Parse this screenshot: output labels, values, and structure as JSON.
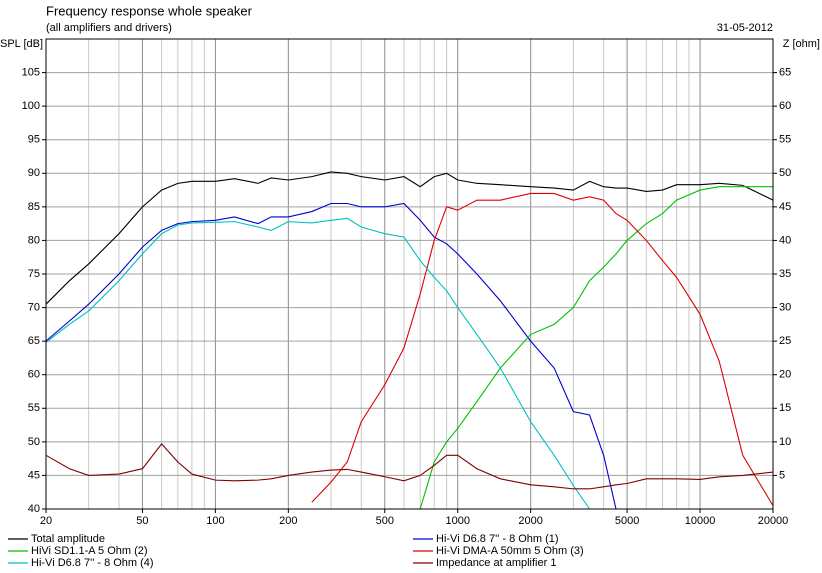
{
  "chart_data": {
    "type": "line",
    "title": "Frequency response whole speaker",
    "subtitle": "(all amplifiers and drivers)",
    "date": "31-05-2012",
    "y_label": "SPL [dB]",
    "y2_label": "Z [ohm]",
    "log_x": true,
    "grid": true,
    "legend": "bottom",
    "xlim": [
      20,
      20000
    ],
    "xticks": [
      20,
      50,
      100,
      200,
      500,
      1000,
      2000,
      5000,
      10000,
      20000
    ],
    "xgrid": [
      20,
      30,
      40,
      50,
      60,
      70,
      80,
      90,
      100,
      200,
      300,
      400,
      500,
      600,
      700,
      800,
      900,
      1000,
      2000,
      3000,
      4000,
      5000,
      6000,
      7000,
      8000,
      9000,
      10000,
      20000
    ],
    "ylim": [
      40,
      110
    ],
    "yticks": [
      40,
      45,
      50,
      55,
      60,
      65,
      70,
      75,
      80,
      85,
      90,
      95,
      100,
      105
    ],
    "ygrid": [
      40,
      45,
      50,
      55,
      60,
      65,
      70,
      75,
      80,
      85,
      90,
      95,
      100,
      105,
      110
    ],
    "y2lim": [
      0,
      70
    ],
    "y2ticks": [
      5,
      10,
      15,
      20,
      25,
      30,
      35,
      40,
      45,
      50,
      55,
      60,
      65
    ],
    "x": [
      20,
      25,
      30,
      40,
      50,
      60,
      70,
      80,
      100,
      120,
      150,
      170,
      200,
      250,
      300,
      350,
      400,
      500,
      600,
      700,
      800,
      900,
      1000,
      1200,
      1500,
      2000,
      2500,
      3000,
      3500,
      4000,
      4500,
      5000,
      6000,
      7000,
      8000,
      10000,
      12000,
      15000,
      20000
    ],
    "series": [
      {
        "name": "Total amplitude",
        "color": "#000000",
        "values": [
          70.5,
          74,
          76.5,
          81,
          85,
          87.5,
          88.5,
          88.8,
          88.8,
          89.2,
          88.5,
          89.3,
          89,
          89.5,
          90.2,
          90,
          89.5,
          89,
          89.5,
          88,
          89.5,
          90,
          89,
          88.5,
          88.3,
          88,
          87.8,
          87.5,
          88.8,
          88,
          87.8,
          87.8,
          87.3,
          87.5,
          88.3,
          88.3,
          88.5,
          88.2,
          86
        ]
      },
      {
        "name": "Hi-Vi D6.8 7'' - 8 Ohm (1)",
        "color": "#0000d0",
        "values": [
          65,
          68,
          70.5,
          75,
          79,
          81.5,
          82.5,
          82.8,
          83,
          83.5,
          82.5,
          83.5,
          83.5,
          84.3,
          85.5,
          85.5,
          85,
          85,
          85.5,
          83,
          80.5,
          79.5,
          78,
          75,
          71,
          65,
          61,
          54.5,
          54,
          48,
          40,
          null,
          null,
          null,
          null,
          null,
          null,
          null,
          null
        ]
      },
      {
        "name": "HiVi SD1.1-A 5 Ohm (2)",
        "color": "#00c000",
        "values": [
          40,
          40,
          40,
          40,
          40,
          40,
          40,
          40,
          40,
          40,
          40,
          40,
          40,
          40,
          40,
          40,
          40,
          40,
          40,
          40,
          47,
          50,
          52,
          56,
          61,
          66,
          67.5,
          70,
          74,
          76,
          78,
          80,
          82.5,
          84,
          86,
          87.5,
          88,
          88,
          88
        ]
      },
      {
        "name": "Hi-Vi DMA-A 50mm 5 Ohm (3)",
        "color": "#e00000",
        "values": [
          null,
          null,
          null,
          null,
          null,
          null,
          null,
          null,
          null,
          null,
          null,
          null,
          null,
          41,
          44,
          47,
          53,
          58.5,
          64,
          72,
          80,
          85,
          84.5,
          86,
          86,
          87,
          87,
          86,
          86.5,
          86,
          84,
          83,
          80,
          77,
          74.5,
          69,
          62,
          48,
          40.5
        ]
      },
      {
        "name": "Hi-Vi D6.8 7'' - 8 Ohm (4)",
        "color": "#00c0c0",
        "values": [
          64.8,
          67.5,
          69.5,
          74,
          78,
          81,
          82.3,
          82.6,
          82.7,
          82.8,
          82,
          81.5,
          82.8,
          82.6,
          83,
          83.3,
          82,
          81,
          80.5,
          77,
          74.5,
          72.5,
          70,
          66,
          61,
          53,
          48,
          43.5,
          40,
          null,
          null,
          null,
          null,
          null,
          null,
          null,
          null,
          null,
          null
        ]
      },
      {
        "name": "Impedance at amplifier 1",
        "color": "#800000",
        "axis": "y2",
        "values": [
          8,
          6,
          5,
          5.2,
          6,
          9.7,
          7,
          5.2,
          4.3,
          4.2,
          4.3,
          4.5,
          5,
          5.5,
          5.8,
          5.9,
          5.5,
          4.8,
          4.2,
          5,
          6.5,
          8,
          8,
          6,
          4.5,
          3.6,
          3.3,
          3,
          3,
          3.3,
          3.6,
          3.8,
          4.5,
          4.5,
          4.5,
          4.4,
          4.8,
          5,
          5.5
        ]
      }
    ]
  }
}
